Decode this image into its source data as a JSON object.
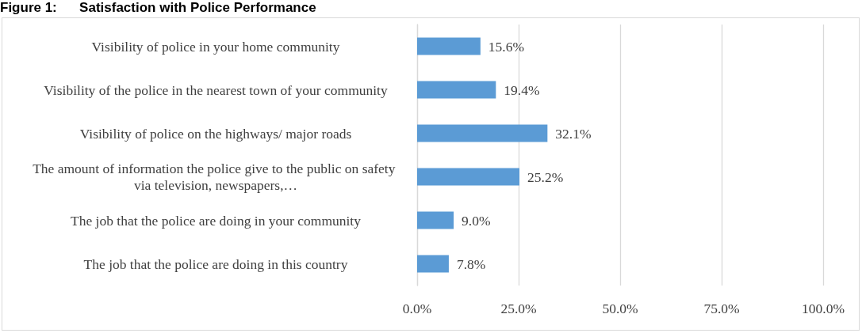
{
  "chart_data": {
    "type": "bar",
    "orientation": "horizontal",
    "title": "Figure 1:      Satisfaction with Police Performance",
    "categories": [
      "Visibility of police in your home community",
      "Visibility of the police in the nearest town of your community",
      "Visibility of police on the highways/ major roads",
      "The amount of information the police give to the public on safety via television, newspapers,…",
      "The job that the police are doing in your community",
      "The job that the police are doing in this country"
    ],
    "values": [
      15.6,
      19.4,
      32.1,
      25.2,
      9.0,
      7.8
    ],
    "value_labels": [
      "15.6%",
      "19.4%",
      "32.1%",
      "25.2%",
      "9.0%",
      "7.8%"
    ],
    "color": "#5b9bd5",
    "xlim": [
      0,
      100
    ],
    "xticks": [
      {
        "value": 0,
        "label": "0.0%"
      },
      {
        "value": 25,
        "label": "25.0%"
      },
      {
        "value": 50,
        "label": "50.0%"
      },
      {
        "value": 75,
        "label": "75.0%"
      },
      {
        "value": 100,
        "label": "100.0%"
      }
    ],
    "grid": "x"
  }
}
